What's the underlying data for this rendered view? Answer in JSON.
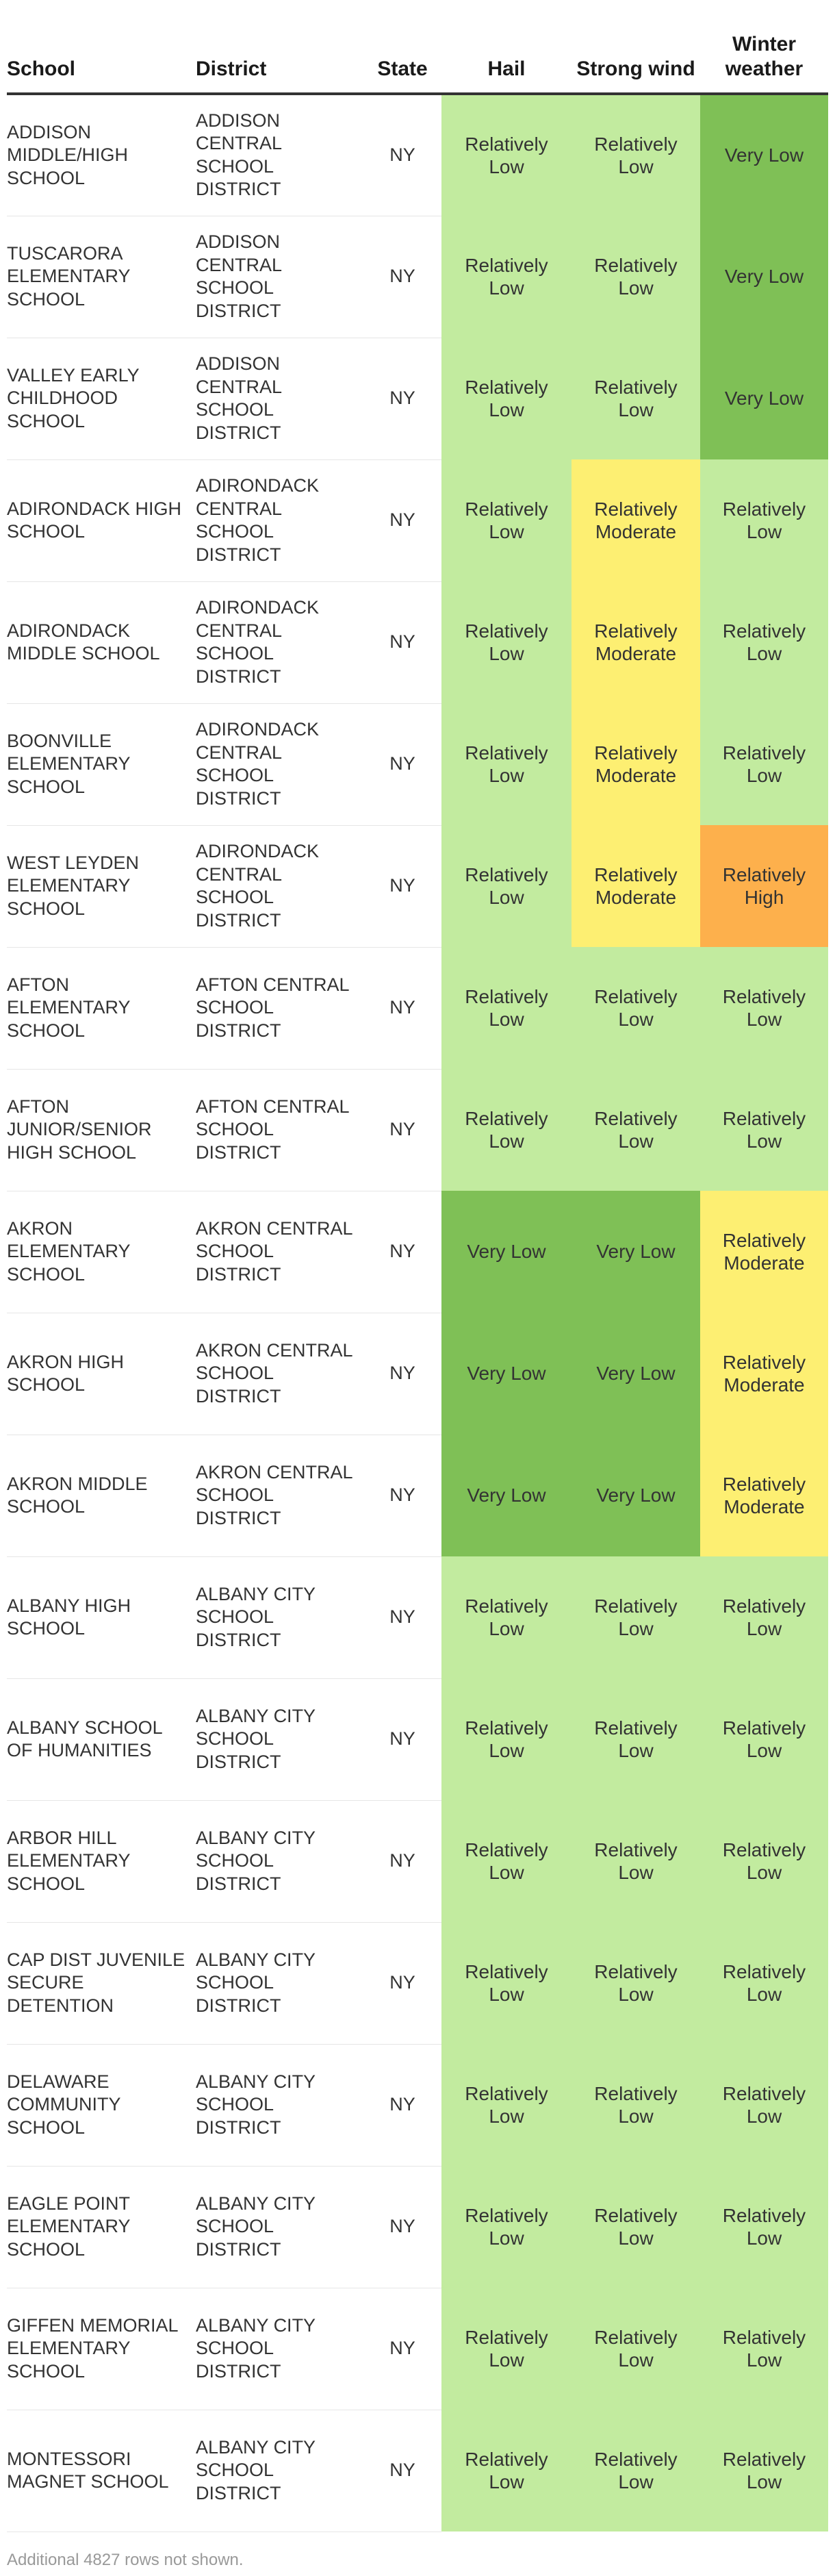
{
  "chart_data": {
    "type": "table",
    "columns": [
      "School",
      "District",
      "State",
      "Hail",
      "Strong wind",
      "Winter weather"
    ],
    "rating_colors": {
      "Very Low": "#7fc056",
      "Relatively Low": "#c2eb9f",
      "Relatively Moderate": "#fdef72",
      "Relatively High": "#fdb04c"
    },
    "rows": [
      {
        "school": "ADDISON MIDDLE/HIGH SCHOOL",
        "district": "ADDISON CENTRAL SCHOOL DISTRICT",
        "state": "NY",
        "hail": "Relatively Low",
        "strong_wind": "Relatively Low",
        "winter_weather": "Very Low"
      },
      {
        "school": "TUSCARORA ELEMENTARY SCHOOL",
        "district": "ADDISON CENTRAL SCHOOL DISTRICT",
        "state": "NY",
        "hail": "Relatively Low",
        "strong_wind": "Relatively Low",
        "winter_weather": "Very Low"
      },
      {
        "school": "VALLEY EARLY CHILDHOOD SCHOOL",
        "district": "ADDISON CENTRAL SCHOOL DISTRICT",
        "state": "NY",
        "hail": "Relatively Low",
        "strong_wind": "Relatively Low",
        "winter_weather": "Very Low"
      },
      {
        "school": "ADIRONDACK HIGH SCHOOL",
        "district": "ADIRONDACK CENTRAL SCHOOL DISTRICT",
        "state": "NY",
        "hail": "Relatively Low",
        "strong_wind": "Relatively Moderate",
        "winter_weather": "Relatively Low"
      },
      {
        "school": "ADIRONDACK MIDDLE SCHOOL",
        "district": "ADIRONDACK CENTRAL SCHOOL DISTRICT",
        "state": "NY",
        "hail": "Relatively Low",
        "strong_wind": "Relatively Moderate",
        "winter_weather": "Relatively Low"
      },
      {
        "school": "BOONVILLE ELEMENTARY SCHOOL",
        "district": "ADIRONDACK CENTRAL SCHOOL DISTRICT",
        "state": "NY",
        "hail": "Relatively Low",
        "strong_wind": "Relatively Moderate",
        "winter_weather": "Relatively Low"
      },
      {
        "school": "WEST LEYDEN ELEMENTARY SCHOOL",
        "district": "ADIRONDACK CENTRAL SCHOOL DISTRICT",
        "state": "NY",
        "hail": "Relatively Low",
        "strong_wind": "Relatively Moderate",
        "winter_weather": "Relatively High"
      },
      {
        "school": "AFTON ELEMENTARY SCHOOL",
        "district": "AFTON CENTRAL SCHOOL DISTRICT",
        "state": "NY",
        "hail": "Relatively Low",
        "strong_wind": "Relatively Low",
        "winter_weather": "Relatively Low"
      },
      {
        "school": "AFTON JUNIOR/SENIOR HIGH SCHOOL",
        "district": "AFTON CENTRAL SCHOOL DISTRICT",
        "state": "NY",
        "hail": "Relatively Low",
        "strong_wind": "Relatively Low",
        "winter_weather": "Relatively Low"
      },
      {
        "school": "AKRON ELEMENTARY SCHOOL",
        "district": "AKRON CENTRAL SCHOOL DISTRICT",
        "state": "NY",
        "hail": "Very Low",
        "strong_wind": "Very Low",
        "winter_weather": "Relatively Moderate"
      },
      {
        "school": "AKRON HIGH SCHOOL",
        "district": "AKRON CENTRAL SCHOOL DISTRICT",
        "state": "NY",
        "hail": "Very Low",
        "strong_wind": "Very Low",
        "winter_weather": "Relatively Moderate"
      },
      {
        "school": "AKRON MIDDLE SCHOOL",
        "district": "AKRON CENTRAL SCHOOL DISTRICT",
        "state": "NY",
        "hail": "Very Low",
        "strong_wind": "Very Low",
        "winter_weather": "Relatively Moderate"
      },
      {
        "school": "ALBANY HIGH SCHOOL",
        "district": "ALBANY CITY SCHOOL DISTRICT",
        "state": "NY",
        "hail": "Relatively Low",
        "strong_wind": "Relatively Low",
        "winter_weather": "Relatively Low"
      },
      {
        "school": "ALBANY SCHOOL OF HUMANITIES",
        "district": "ALBANY CITY SCHOOL DISTRICT",
        "state": "NY",
        "hail": "Relatively Low",
        "strong_wind": "Relatively Low",
        "winter_weather": "Relatively Low"
      },
      {
        "school": "ARBOR HILL ELEMENTARY SCHOOL",
        "district": "ALBANY CITY SCHOOL DISTRICT",
        "state": "NY",
        "hail": "Relatively Low",
        "strong_wind": "Relatively Low",
        "winter_weather": "Relatively Low"
      },
      {
        "school": "CAP DIST JUVENILE SECURE DETENTION",
        "district": "ALBANY CITY SCHOOL DISTRICT",
        "state": "NY",
        "hail": "Relatively Low",
        "strong_wind": "Relatively Low",
        "winter_weather": "Relatively Low"
      },
      {
        "school": "DELAWARE COMMUNITY SCHOOL",
        "district": "ALBANY CITY SCHOOL DISTRICT",
        "state": "NY",
        "hail": "Relatively Low",
        "strong_wind": "Relatively Low",
        "winter_weather": "Relatively Low"
      },
      {
        "school": "EAGLE POINT ELEMENTARY SCHOOL",
        "district": "ALBANY CITY SCHOOL DISTRICT",
        "state": "NY",
        "hail": "Relatively Low",
        "strong_wind": "Relatively Low",
        "winter_weather": "Relatively Low"
      },
      {
        "school": "GIFFEN MEMORIAL ELEMENTARY SCHOOL",
        "district": "ALBANY CITY SCHOOL DISTRICT",
        "state": "NY",
        "hail": "Relatively Low",
        "strong_wind": "Relatively Low",
        "winter_weather": "Relatively Low"
      },
      {
        "school": "MONTESSORI MAGNET SCHOOL",
        "district": "ALBANY CITY SCHOOL DISTRICT",
        "state": "NY",
        "hail": "Relatively Low",
        "strong_wind": "Relatively Low",
        "winter_weather": "Relatively Low"
      }
    ],
    "footer_note": "Additional 4827 rows not shown."
  }
}
